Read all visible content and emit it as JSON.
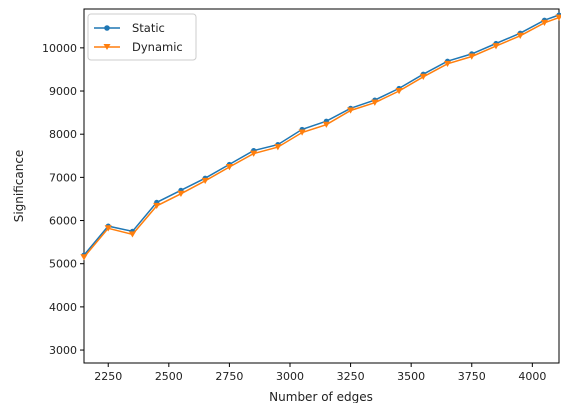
{
  "chart_data": {
    "type": "line",
    "title": "",
    "xlabel": "Number of edges",
    "ylabel": "Significance",
    "xlim": [
      2150,
      4110
    ],
    "ylim": [
      2700,
      10900
    ],
    "xticks": [
      2250,
      2500,
      2750,
      3000,
      3250,
      3500,
      3750,
      4000
    ],
    "yticks": [
      3000,
      4000,
      5000,
      6000,
      7000,
      8000,
      9000,
      10000
    ],
    "grid": false,
    "legend": "top-left",
    "x": [
      2150,
      2250,
      2350,
      2450,
      2550,
      2650,
      2750,
      2850,
      2950,
      3050,
      3150,
      3250,
      3350,
      3450,
      3550,
      3650,
      3750,
      3850,
      3950,
      4050,
      4110
    ],
    "series": [
      {
        "name": "Static",
        "color": "#1f77b4",
        "marker": "circle",
        "values": [
          5200,
          5870,
          5750,
          6420,
          6700,
          6980,
          7300,
          7620,
          7760,
          8110,
          8300,
          8600,
          8790,
          9060,
          9390,
          9690,
          9860,
          10100,
          10340,
          10640,
          10760
        ]
      },
      {
        "name": "Dynamic",
        "color": "#ff7f0e",
        "marker": "triangle-down",
        "values": [
          5150,
          5820,
          5680,
          6340,
          6620,
          6920,
          7240,
          7550,
          7700,
          8040,
          8220,
          8550,
          8730,
          9000,
          9330,
          9630,
          9800,
          10040,
          10280,
          10580,
          10700
        ]
      }
    ]
  }
}
